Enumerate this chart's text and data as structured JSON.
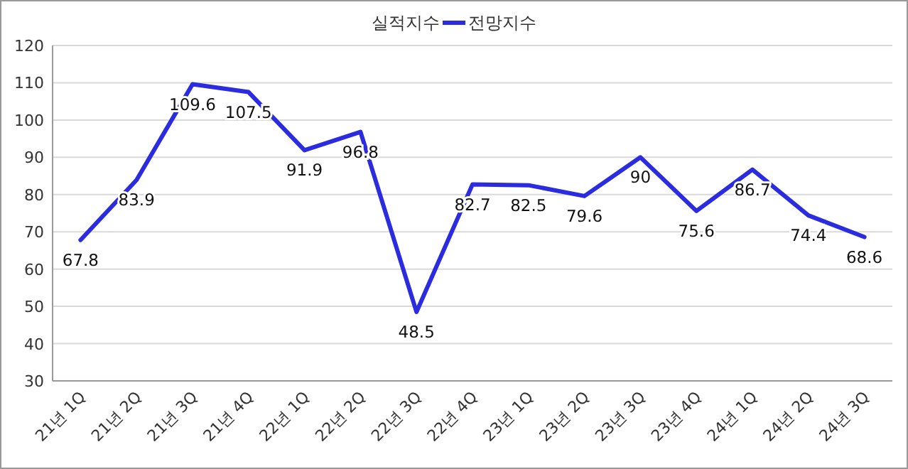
{
  "chart_data": {
    "type": "line",
    "title": "실적지수",
    "categories": [
      "21년 1Q",
      "21년 2Q",
      "21년 3Q",
      "21년 4Q",
      "22년 1Q",
      "22년 2Q",
      "22년 3Q",
      "22년 4Q",
      "23년 1Q",
      "23년 2Q",
      "23년 3Q",
      "23년 4Q",
      "24년 1Q",
      "24년 2Q",
      "24년 3Q"
    ],
    "series": [
      {
        "name": "전망지수",
        "color": "#2b2bdf",
        "values": [
          67.8,
          83.9,
          109.6,
          107.5,
          91.9,
          96.8,
          48.5,
          82.7,
          82.5,
          79.6,
          90,
          75.6,
          86.7,
          74.4,
          68.6
        ]
      }
    ],
    "ylim": [
      30,
      120
    ],
    "yticks": [
      30,
      40,
      50,
      60,
      70,
      80,
      90,
      100,
      110,
      120
    ],
    "grid": "y",
    "legend": "top",
    "data_labels": true,
    "marker": "none",
    "line_style": "solid"
  }
}
